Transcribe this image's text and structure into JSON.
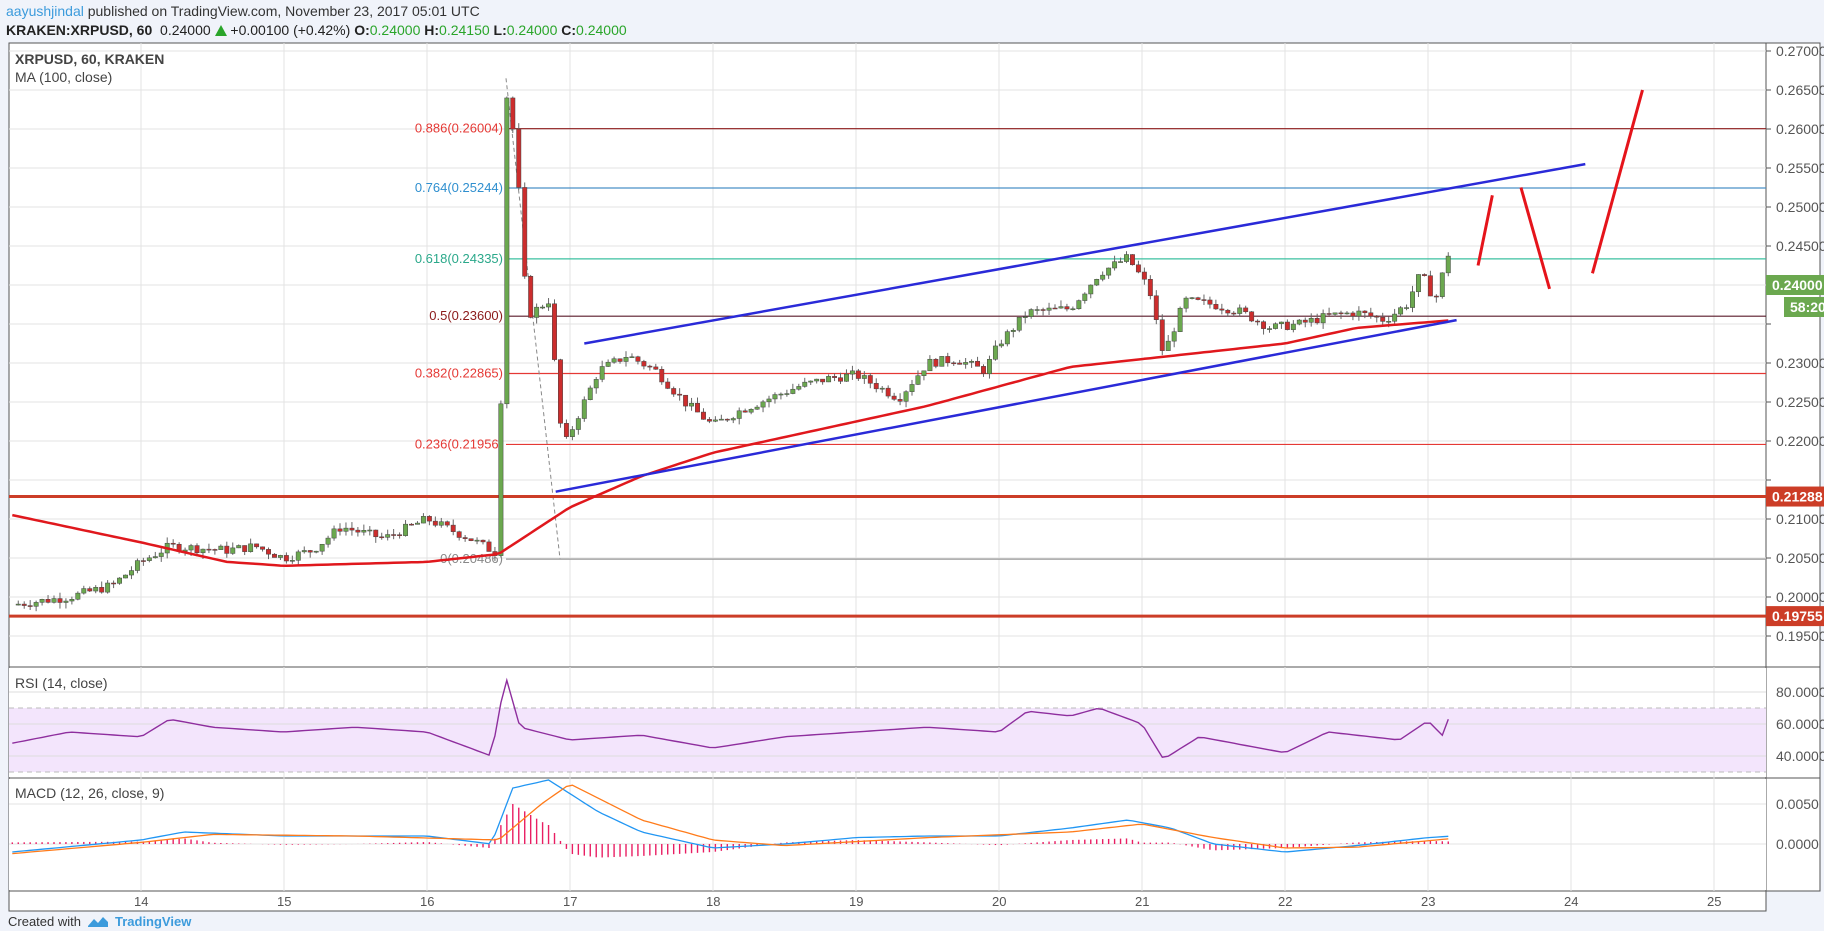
{
  "header": {
    "user": "aayushjindal",
    "published": "published on TradingView.com, November 23, 2017 05:01 UTC",
    "symbol": "KRAKEN:XRPUSD, 60",
    "last": "0.24000",
    "change": "+0.00100 (+0.42%)",
    "o_label": "O:",
    "o": "0.24000",
    "h_label": "H:",
    "h": "0.24150",
    "l_label": "L:",
    "l": "0.24000",
    "c_label": "C:",
    "c": "0.24000"
  },
  "legend": {
    "title": "XRPUSD, 60, KRAKEN",
    "ma": "MA (100, close)",
    "rsi": "RSI (14, close)",
    "macd": "MACD (12, 26, close, 9)"
  },
  "footer": {
    "created": "Created with",
    "brand": "TradingView"
  },
  "chart_data": {
    "type": "candlestick",
    "x_ticks": [
      "14",
      "15",
      "16",
      "17",
      "18",
      "19",
      "20",
      "21",
      "22",
      "23",
      "24",
      "25"
    ],
    "price_ticks": [
      "0.27000",
      "0.26500",
      "0.26000",
      "0.25500",
      "0.25000",
      "0.24500",
      "0.24000",
      "0.23500",
      "0.23000",
      "0.22500",
      "0.22000",
      "0.21500",
      "0.21000",
      "0.20500",
      "0.20000",
      "0.19500"
    ],
    "ylim": [
      0.19,
      0.2725
    ],
    "price_labels": [
      {
        "text": "0.24000",
        "value": 0.24,
        "color": "#6ba84f"
      },
      {
        "text": "58:20",
        "value": 0.2385,
        "color": "#6ba84f"
      },
      {
        "text": "0.21288",
        "value": 0.21288,
        "color": "#cc3d27"
      },
      {
        "text": "0.19755",
        "value": 0.19755,
        "color": "#cc3d27"
      }
    ],
    "close_path": [
      [
        13.1,
        0.199
      ],
      [
        13.5,
        0.2
      ],
      [
        13.8,
        0.2015
      ],
      [
        14.0,
        0.2045
      ],
      [
        14.2,
        0.2065
      ],
      [
        14.6,
        0.206
      ],
      [
        14.8,
        0.2065
      ],
      [
        15.0,
        0.205
      ],
      [
        15.2,
        0.206
      ],
      [
        15.4,
        0.209
      ],
      [
        15.7,
        0.2075
      ],
      [
        16.0,
        0.21
      ],
      [
        16.3,
        0.2075
      ],
      [
        16.5,
        0.2055
      ],
      [
        16.55,
        0.265
      ],
      [
        16.62,
        0.258
      ],
      [
        16.7,
        0.236
      ],
      [
        16.85,
        0.238
      ],
      [
        16.95,
        0.219
      ],
      [
        17.1,
        0.225
      ],
      [
        17.2,
        0.229
      ],
      [
        17.4,
        0.231
      ],
      [
        17.6,
        0.229
      ],
      [
        17.8,
        0.225
      ],
      [
        18.0,
        0.222
      ],
      [
        18.2,
        0.224
      ],
      [
        18.4,
        0.2255
      ],
      [
        18.6,
        0.227
      ],
      [
        18.8,
        0.228
      ],
      [
        19.0,
        0.2285
      ],
      [
        19.3,
        0.2255
      ],
      [
        19.5,
        0.23
      ],
      [
        19.7,
        0.2305
      ],
      [
        19.9,
        0.229
      ],
      [
        20.0,
        0.2325
      ],
      [
        20.2,
        0.2365
      ],
      [
        20.5,
        0.237
      ],
      [
        20.7,
        0.2415
      ],
      [
        20.9,
        0.2435
      ],
      [
        21.05,
        0.2395
      ],
      [
        21.15,
        0.231
      ],
      [
        21.3,
        0.238
      ],
      [
        21.5,
        0.2375
      ],
      [
        21.7,
        0.2365
      ],
      [
        21.9,
        0.2345
      ],
      [
        22.1,
        0.235
      ],
      [
        22.3,
        0.236
      ],
      [
        22.5,
        0.2365
      ],
      [
        22.7,
        0.2355
      ],
      [
        22.85,
        0.2375
      ],
      [
        22.95,
        0.2415
      ],
      [
        23.05,
        0.238
      ],
      [
        23.15,
        0.2445
      ],
      [
        23.18,
        0.24
      ]
    ],
    "ma100": [
      [
        13.1,
        0.2105
      ],
      [
        14.0,
        0.207
      ],
      [
        14.6,
        0.2045
      ],
      [
        15.0,
        0.204
      ],
      [
        16.0,
        0.2045
      ],
      [
        16.5,
        0.2055
      ],
      [
        17.0,
        0.2115
      ],
      [
        17.5,
        0.2155
      ],
      [
        18.0,
        0.2185
      ],
      [
        18.5,
        0.2205
      ],
      [
        19.0,
        0.2225
      ],
      [
        19.5,
        0.2245
      ],
      [
        20.0,
        0.227
      ],
      [
        20.5,
        0.2295
      ],
      [
        21.0,
        0.2305
      ],
      [
        21.5,
        0.2315
      ],
      [
        22.0,
        0.2325
      ],
      [
        22.5,
        0.2345
      ],
      [
        23.18,
        0.2355
      ]
    ],
    "fib_levels": [
      {
        "label": "0.886(0.26004)",
        "value": 0.26004,
        "color": "#8b1a1a",
        "text_color": "#e53935"
      },
      {
        "label": "0.764(0.25244)",
        "value": 0.25244,
        "color": "#4a90c8",
        "text_color": "#2f8fcf"
      },
      {
        "label": "0.618(0.24335)",
        "value": 0.24335,
        "color": "#3cc0a0",
        "text_color": "#2aa88a"
      },
      {
        "label": "0.5(0.23600)",
        "value": 0.236,
        "color": "#5a1a2a",
        "text_color": "#8b1a1a"
      },
      {
        "label": "0.382(0.22865)",
        "value": 0.22865,
        "color": "#e53935",
        "text_color": "#e53935"
      },
      {
        "label": "0.236(0.21956)",
        "value": 0.21956,
        "color": "#e53935",
        "text_color": "#e53935"
      },
      {
        "label": "0(0.20486)",
        "value": 0.20486,
        "color": "#999999",
        "text_color": "#888888"
      }
    ],
    "horizontal_lines": [
      {
        "value": 0.21288,
        "color": "#cc3d27"
      },
      {
        "value": 0.19755,
        "color": "#cc3d27"
      }
    ],
    "trend_lines": [
      {
        "from": [
          17.1,
          0.2325
        ],
        "to": [
          24.1,
          0.2555
        ],
        "color": "#2a2ad8"
      },
      {
        "from": [
          16.9,
          0.2135
        ],
        "to": [
          23.2,
          0.2355
        ],
        "color": "#2a2ad8"
      }
    ],
    "projection": [
      {
        "from": [
          23.35,
          0.2425
        ],
        "to": [
          23.45,
          0.2515
        ]
      },
      {
        "from": [
          23.65,
          0.2525
        ],
        "to": [
          23.85,
          0.2395
        ]
      },
      {
        "from": [
          24.15,
          0.2415
        ],
        "to": [
          24.5,
          0.265
        ]
      }
    ],
    "rsi": {
      "ticks": [
        "80.0000",
        "60.0000",
        "40.0000"
      ],
      "band": [
        30,
        70
      ],
      "values": [
        [
          13.1,
          48
        ],
        [
          13.5,
          55
        ],
        [
          14.0,
          52
        ],
        [
          14.2,
          63
        ],
        [
          14.5,
          58
        ],
        [
          15.0,
          55
        ],
        [
          15.5,
          58
        ],
        [
          16.0,
          55
        ],
        [
          16.45,
          40
        ],
        [
          16.55,
          90
        ],
        [
          16.65,
          58
        ],
        [
          17.0,
          50
        ],
        [
          17.5,
          53
        ],
        [
          18.0,
          45
        ],
        [
          18.5,
          52
        ],
        [
          19.0,
          55
        ],
        [
          19.5,
          58
        ],
        [
          20.0,
          55
        ],
        [
          20.2,
          68
        ],
        [
          20.5,
          65
        ],
        [
          20.7,
          70
        ],
        [
          21.0,
          60
        ],
        [
          21.15,
          38
        ],
        [
          21.4,
          52
        ],
        [
          22.0,
          42
        ],
        [
          22.3,
          55
        ],
        [
          22.8,
          50
        ],
        [
          23.0,
          62
        ],
        [
          23.1,
          53
        ],
        [
          23.15,
          65
        ],
        [
          23.18,
          54
        ]
      ]
    },
    "macd": {
      "ticks": [
        "0.0050",
        "0.0000"
      ],
      "macd": [
        [
          13.1,
          -0.001
        ],
        [
          14.0,
          0.0005
        ],
        [
          14.3,
          0.0015
        ],
        [
          15.0,
          0.001
        ],
        [
          16.0,
          0.001
        ],
        [
          16.45,
          0.0
        ],
        [
          16.6,
          0.007
        ],
        [
          16.85,
          0.008
        ],
        [
          17.2,
          0.004
        ],
        [
          17.5,
          0.0015
        ],
        [
          18.0,
          -0.0005
        ],
        [
          18.5,
          0.0
        ],
        [
          19.0,
          0.0008
        ],
        [
          19.5,
          0.001
        ],
        [
          20.0,
          0.001
        ],
        [
          20.5,
          0.002
        ],
        [
          20.9,
          0.003
        ],
        [
          21.2,
          0.002
        ],
        [
          21.5,
          0.0
        ],
        [
          22.0,
          -0.001
        ],
        [
          22.5,
          -0.0002
        ],
        [
          23.0,
          0.0008
        ],
        [
          23.18,
          0.001
        ]
      ],
      "signal": [
        [
          13.1,
          -0.0012
        ],
        [
          14.0,
          0.0002
        ],
        [
          14.5,
          0.0012
        ],
        [
          15.5,
          0.001
        ],
        [
          16.5,
          0.0005
        ],
        [
          16.8,
          0.005
        ],
        [
          17.0,
          0.0075
        ],
        [
          17.5,
          0.003
        ],
        [
          18.0,
          0.0005
        ],
        [
          18.5,
          -0.0002
        ],
        [
          19.5,
          0.0008
        ],
        [
          20.5,
          0.0015
        ],
        [
          21.0,
          0.0025
        ],
        [
          21.5,
          0.0008
        ],
        [
          22.0,
          -0.0005
        ],
        [
          22.5,
          -0.0004
        ],
        [
          23.18,
          0.0007
        ]
      ]
    },
    "colors": {
      "up": "#6ba84f",
      "down": "#cc2d2d",
      "ma": "#e0181d",
      "rsi": "#8e2e9e",
      "rsi_band": "#f3e5fc",
      "macd": "#2196f3",
      "signal": "#ff7b1a",
      "hist": "#e91e63"
    }
  }
}
